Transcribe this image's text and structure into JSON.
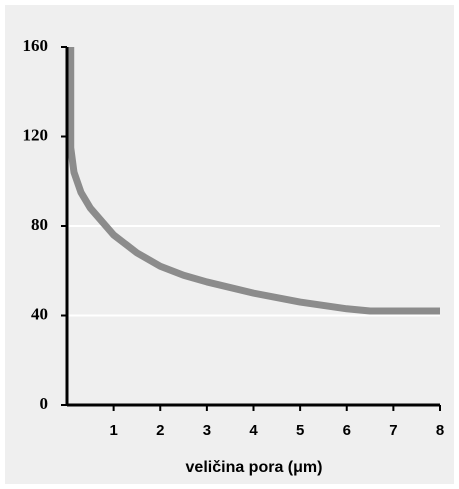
{
  "chart_data": {
    "type": "line",
    "x_label": "veličina pora (μm)",
    "x": [
      0.08,
      0.08,
      0.15,
      0.3,
      0.5,
      1,
      1.5,
      2,
      2.5,
      3,
      4,
      5,
      6,
      6.5,
      7,
      8
    ],
    "series": [
      {
        "name": "curve",
        "color": "#8c8c8c",
        "values": [
          160,
          115,
          104,
          95,
          88,
          76,
          68,
          62,
          58,
          55,
          50,
          46,
          43,
          42,
          42,
          42
        ]
      }
    ],
    "xlim": [
      0,
      8
    ],
    "xticks": [
      1,
      2,
      3,
      4,
      5,
      6,
      7,
      8
    ],
    "ylim": [
      0,
      160
    ],
    "yticks": [
      0,
      40,
      80,
      120,
      160
    ],
    "grid_lines": [
      40,
      80
    ]
  }
}
